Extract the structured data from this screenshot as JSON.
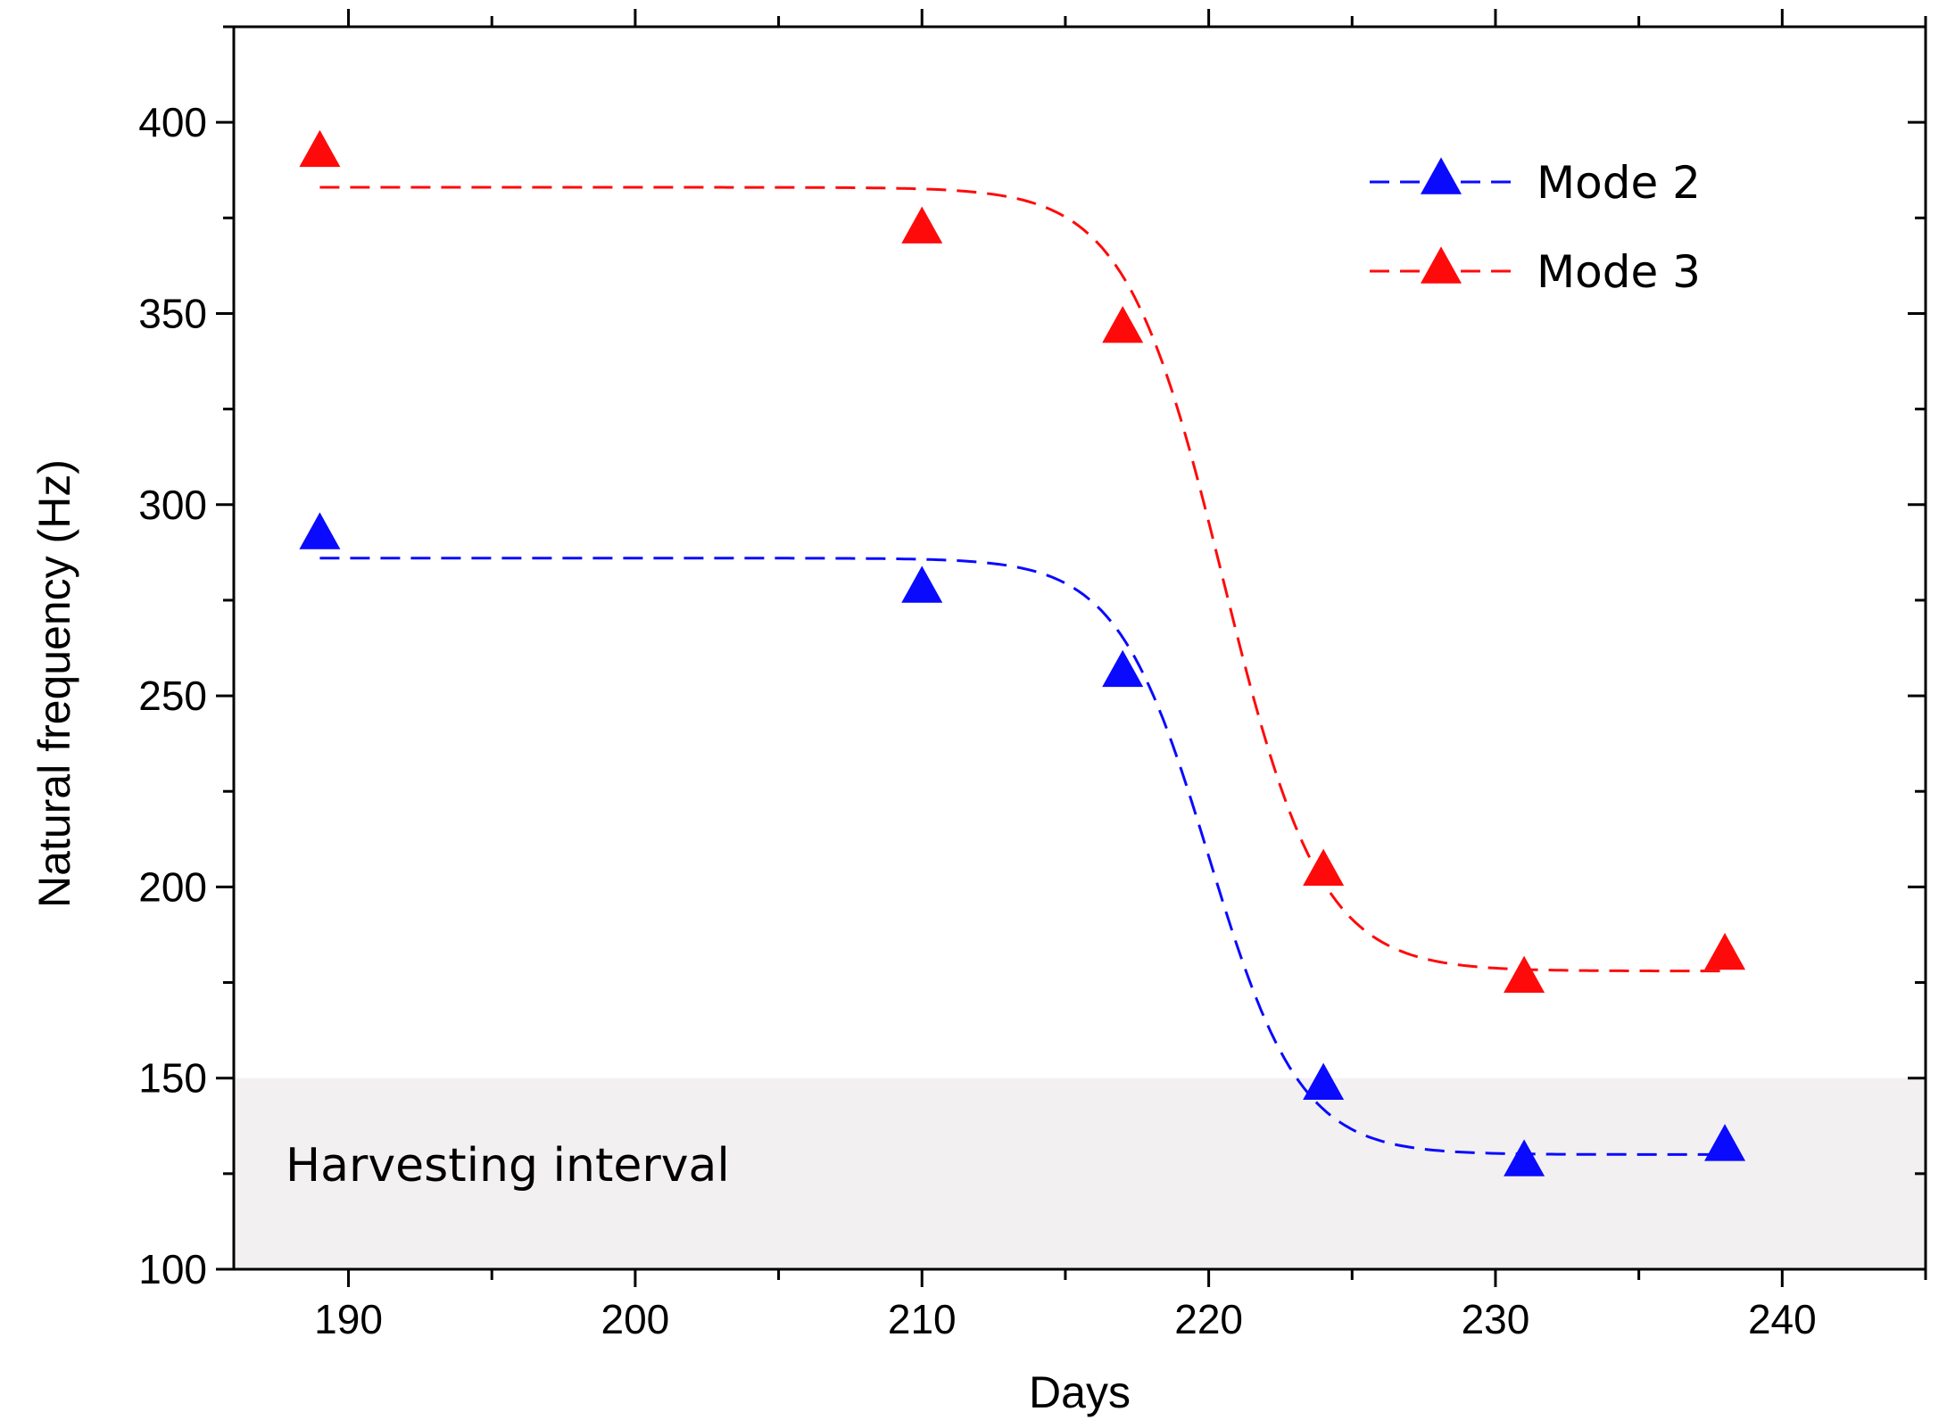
{
  "chart_data": {
    "type": "line",
    "title": "",
    "xlabel": "Days",
    "ylabel": "Natural frequency (Hz)",
    "xlim": [
      186,
      245
    ],
    "ylim": [
      100,
      425
    ],
    "xticks": [
      190,
      200,
      210,
      220,
      230,
      240
    ],
    "yticks": [
      100,
      150,
      200,
      250,
      300,
      350,
      400
    ],
    "grid": false,
    "legend_position": "top-right",
    "shaded_region": {
      "label": "Harvesting interval",
      "y_from": 100,
      "y_to": 150,
      "color": "#f2f0f1"
    },
    "series": [
      {
        "name": "Mode 2",
        "color": "#0a0aff",
        "marker": "triangle",
        "x": [
          189,
          210,
          217,
          224,
          231,
          238
        ],
        "y": [
          292,
          278,
          256,
          148,
          128,
          132
        ],
        "fit": {
          "type": "sigmoid",
          "upper": 286,
          "lower": 130,
          "center": 220,
          "width": 1.6
        }
      },
      {
        "name": "Mode 3",
        "color": "#ff0a0a",
        "marker": "triangle",
        "x": [
          189,
          210,
          217,
          224,
          231,
          238
        ],
        "y": [
          392,
          372,
          346,
          204,
          176,
          182
        ],
        "fit": {
          "type": "sigmoid",
          "upper": 383,
          "lower": 178,
          "center": 220.5,
          "width": 1.7
        }
      }
    ]
  }
}
